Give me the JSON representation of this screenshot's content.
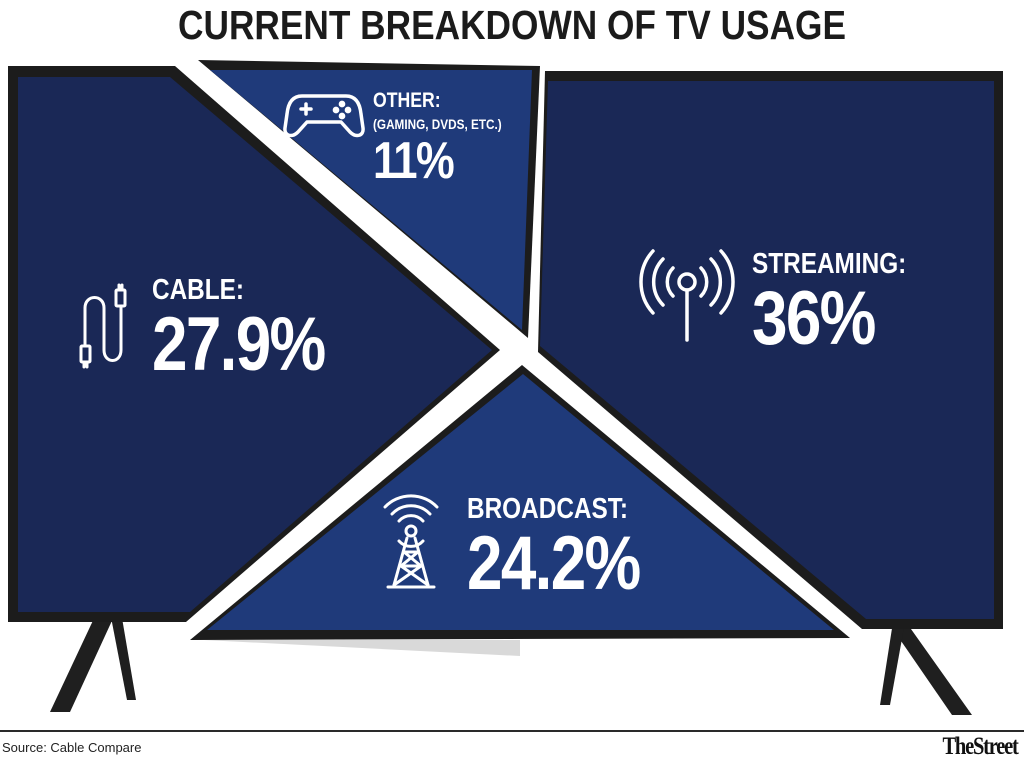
{
  "title": "CURRENT BREAKDOWN OF TV USAGE",
  "source": "Source:  Cable Compare",
  "brand": "TheStreet",
  "colors": {
    "panel_dark": "#1a2856",
    "panel_mid": "#1f3a7a",
    "tv_frame": "#1c1c1c",
    "text": "#ffffff"
  },
  "chart_data": {
    "type": "pie",
    "title": "CURRENT BREAKDOWN OF TV USAGE",
    "slices": [
      {
        "label": "CABLE:",
        "value": 27.9,
        "display": "27.9%",
        "icon": "cable-icon"
      },
      {
        "label": "OTHER:",
        "sublabel": "(GAMING, DVDS, ETC.)",
        "value": 11,
        "display": "11%",
        "icon": "gamepad-icon"
      },
      {
        "label": "STREAMING:",
        "value": 36,
        "display": "36%",
        "icon": "wireless-antenna-icon"
      },
      {
        "label": "BROADCAST:",
        "value": 24.2,
        "display": "24.2%",
        "icon": "broadcast-tower-icon"
      }
    ]
  }
}
